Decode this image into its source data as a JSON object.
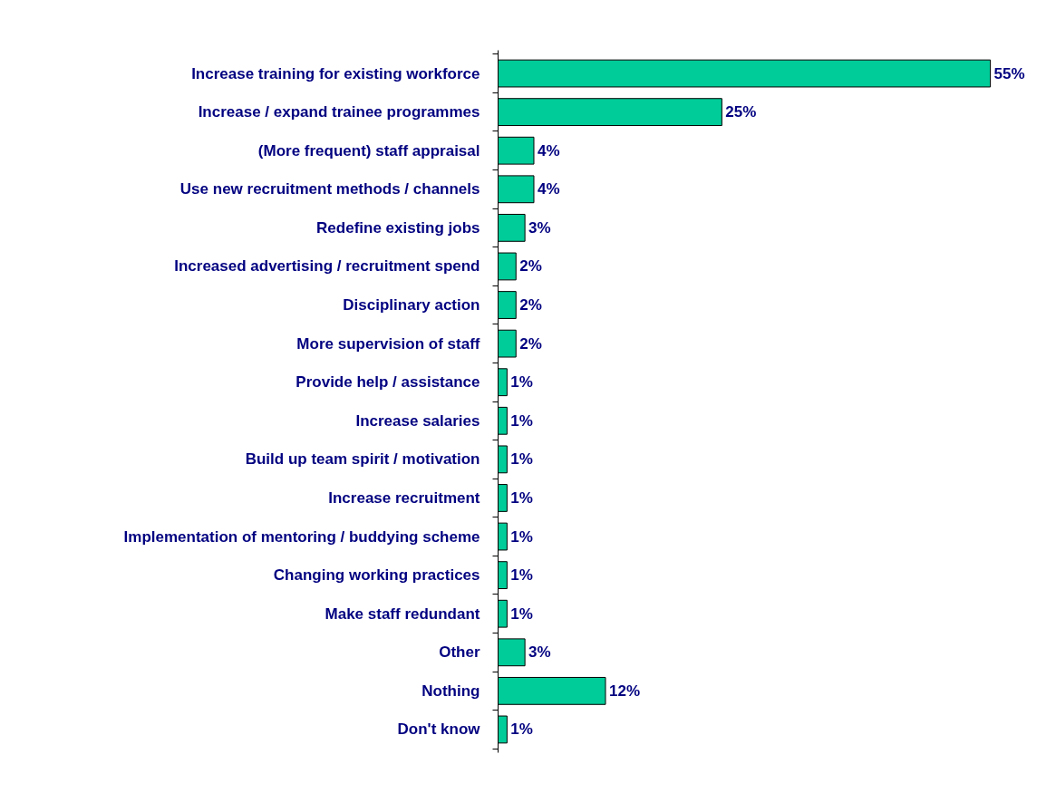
{
  "chart_data": {
    "type": "bar",
    "orientation": "horizontal",
    "categories": [
      "Increase training for existing workforce",
      "Increase / expand trainee programmes",
      "(More frequent) staff appraisal",
      "Use new recruitment methods / channels",
      "Redefine existing jobs",
      "Increased advertising / recruitment spend",
      "Disciplinary action",
      "More supervision of staff",
      "Provide help / assistance",
      "Increase salaries",
      "Build up team spirit / motivation",
      "Increase recruitment",
      "Implementation of mentoring / buddying scheme",
      "Changing working practices",
      "Make staff redundant",
      "Other",
      "Nothing",
      "Don't know"
    ],
    "values": [
      55,
      25,
      4,
      4,
      3,
      2,
      2,
      2,
      1,
      1,
      1,
      1,
      1,
      1,
      1,
      3,
      12,
      1
    ],
    "value_labels": [
      "55%",
      "25%",
      "4%",
      "4%",
      "3%",
      "2%",
      "2%",
      "2%",
      "1%",
      "1%",
      "1%",
      "1%",
      "1%",
      "1%",
      "1%",
      "3%",
      "12%",
      "1%"
    ],
    "color": "#00cc99"
  }
}
